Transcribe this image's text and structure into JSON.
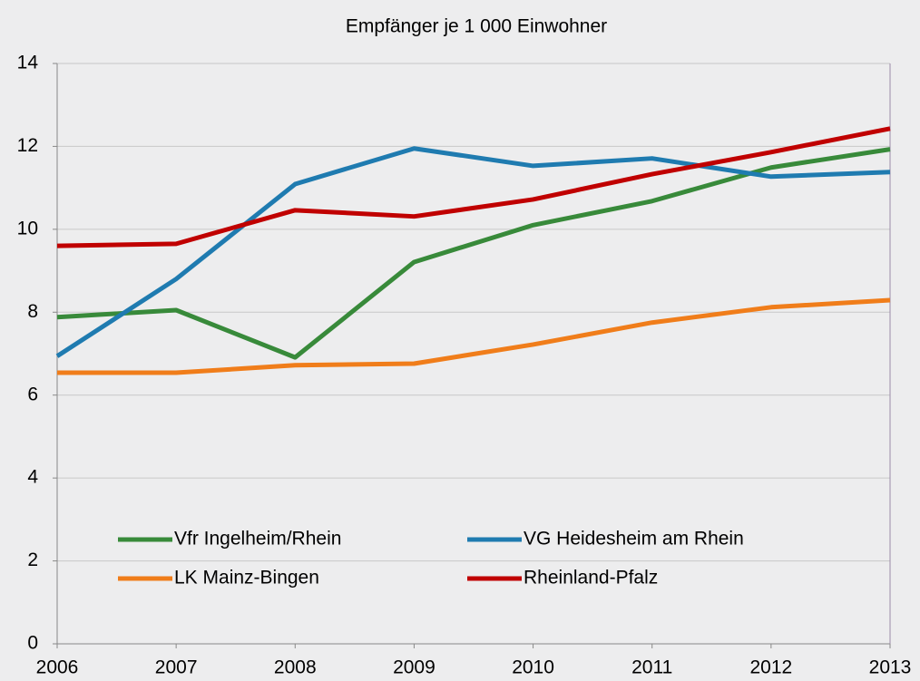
{
  "chart_data": {
    "type": "line",
    "title": "Empfänger je 1 000 Einwohner",
    "x": [
      2006,
      2007,
      2008,
      2009,
      2010,
      2011,
      2012,
      2013
    ],
    "xlim": [
      2006,
      2013
    ],
    "xticks": [
      2006,
      2007,
      2008,
      2009,
      2010,
      2011,
      2012,
      2013
    ],
    "ylim": [
      0,
      14
    ],
    "yticks": [
      0,
      2,
      4,
      6,
      8,
      10,
      12,
      14
    ],
    "grid": true,
    "legend": "lower center",
    "series": [
      {
        "name": "Vfr Ingelheim/Rhein",
        "color": "#388a3a",
        "values": [
          7.88,
          8.05,
          6.91,
          9.21,
          10.1,
          10.68,
          11.49,
          11.93
        ]
      },
      {
        "name": "VG Heidesheim am Rhein",
        "color": "#1f7bb0",
        "values": [
          6.94,
          8.8,
          11.09,
          11.95,
          11.53,
          11.71,
          11.27,
          11.38
        ]
      },
      {
        "name": "LK Mainz-Bingen",
        "color": "#f07d1a",
        "values": [
          6.54,
          6.54,
          6.72,
          6.76,
          7.22,
          7.75,
          8.12,
          8.29
        ]
      },
      {
        "name": "Rheinland-Pfalz",
        "color": "#c00000",
        "values": [
          9.6,
          9.65,
          10.46,
          10.31,
          10.72,
          11.33,
          11.86,
          12.43
        ]
      }
    ]
  }
}
